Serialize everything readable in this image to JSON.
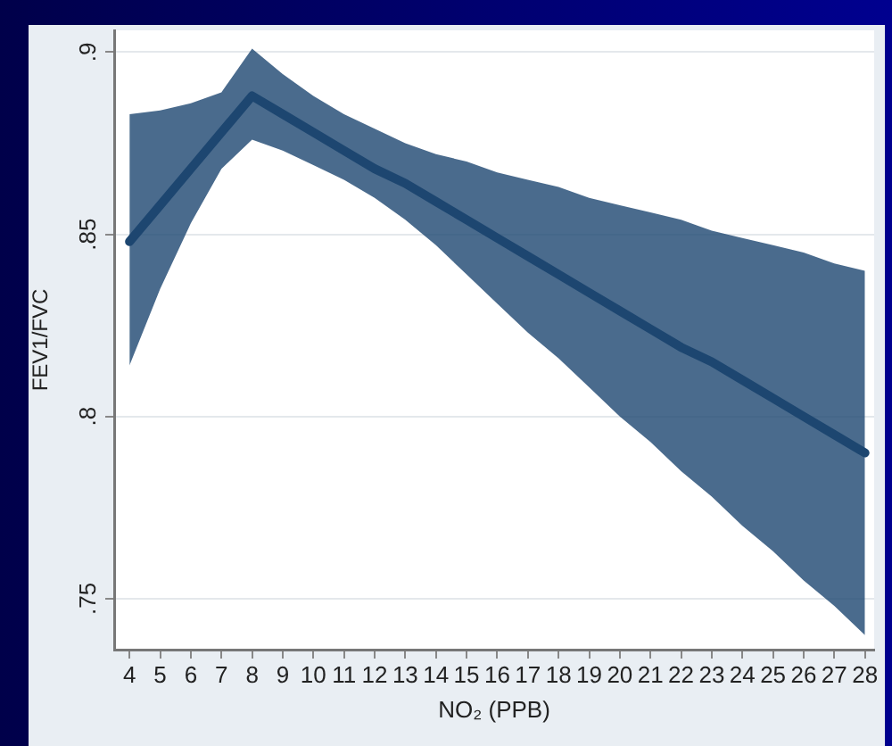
{
  "chart_data": {
    "type": "line",
    "xlabel": "NO₂ (PPB)",
    "ylabel": "FEV1/FVC",
    "x": [
      4,
      5,
      6,
      7,
      8,
      9,
      10,
      11,
      12,
      13,
      14,
      15,
      16,
      17,
      18,
      19,
      20,
      21,
      22,
      23,
      24,
      25,
      26,
      27,
      28
    ],
    "series": [
      {
        "type": "line",
        "color": "#1d4670",
        "values": [
          0.848,
          0.858,
          0.868,
          0.878,
          0.888,
          0.883,
          0.878,
          0.873,
          0.868,
          0.864,
          0.859,
          0.854,
          0.849,
          0.844,
          0.839,
          0.834,
          0.829,
          0.824,
          0.819,
          0.815,
          0.81,
          0.805,
          0.8,
          0.795,
          0.79
        ],
        "lower": [
          0.814,
          0.835,
          0.853,
          0.868,
          0.876,
          0.873,
          0.869,
          0.865,
          0.86,
          0.854,
          0.847,
          0.839,
          0.831,
          0.823,
          0.816,
          0.808,
          0.8,
          0.793,
          0.785,
          0.778,
          0.77,
          0.763,
          0.755,
          0.748,
          0.74
        ],
        "upper": [
          0.883,
          0.884,
          0.886,
          0.889,
          0.901,
          0.894,
          0.888,
          0.883,
          0.879,
          0.875,
          0.872,
          0.87,
          0.867,
          0.865,
          0.863,
          0.86,
          0.858,
          0.856,
          0.854,
          0.851,
          0.849,
          0.847,
          0.845,
          0.842,
          0.84
        ]
      }
    ],
    "xlim": [
      3.5,
      28.3
    ],
    "ylim": [
      0.736,
      0.906
    ],
    "xticks": [
      4,
      5,
      6,
      7,
      8,
      9,
      10,
      11,
      12,
      13,
      14,
      15,
      16,
      17,
      18,
      19,
      20,
      21,
      22,
      23,
      24,
      25,
      26,
      27,
      28
    ],
    "yticks": [
      {
        "value": 0.75,
        "label": ".75"
      },
      {
        "value": 0.8,
        "label": ".8"
      },
      {
        "value": 0.85,
        "label": ".85"
      },
      {
        "value": 0.9,
        "label": ".9"
      }
    ],
    "grid": "y",
    "legend": false,
    "marker": "none",
    "line_style": "solid"
  }
}
